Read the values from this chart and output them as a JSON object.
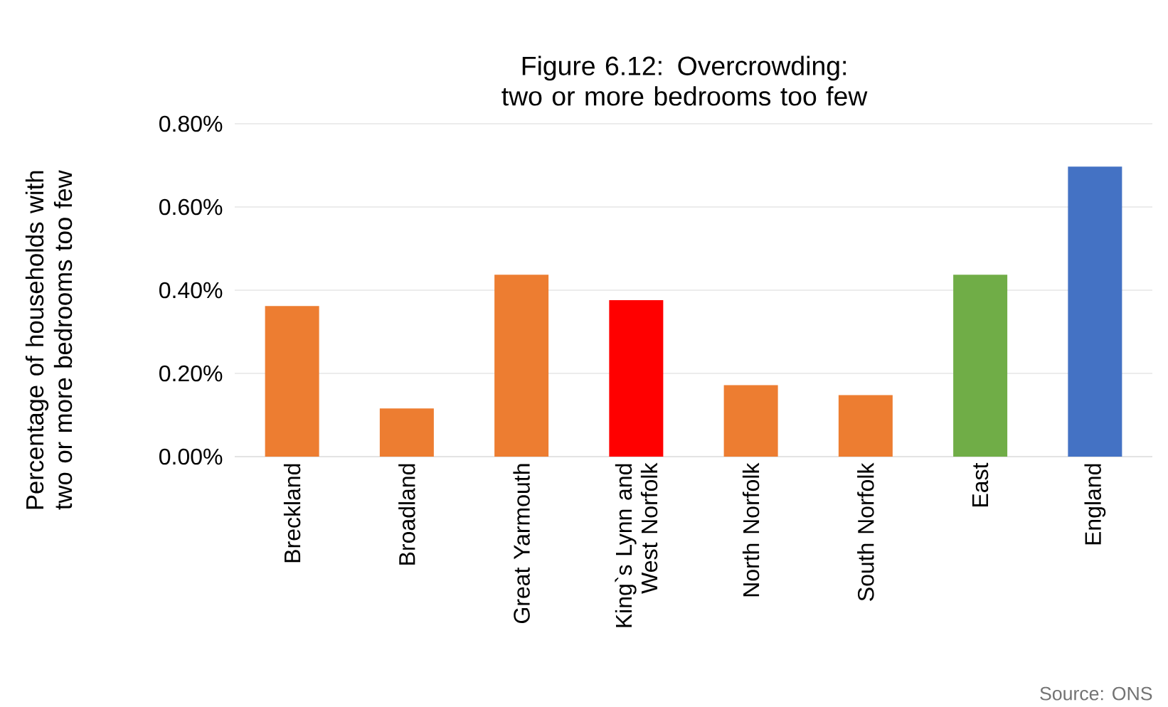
{
  "chart_data": {
    "type": "bar",
    "title": "Figure 6.12: Overcrowding: two or more bedrooms too few",
    "ylabel": "Percentage of households with two or more bedrooms too few",
    "categories": [
      "Breckland",
      "Broadland",
      "Great Yarmouth",
      "King`s Lynn and West Norfolk",
      "North Norfolk",
      "South Norfolk",
      "East",
      "England"
    ],
    "values": [
      0.362,
      0.116,
      0.437,
      0.376,
      0.172,
      0.148,
      0.437,
      0.697
    ],
    "colors": [
      "#ed7d31",
      "#ed7d31",
      "#ed7d31",
      "#ff0000",
      "#ed7d31",
      "#ed7d31",
      "#70ad47",
      "#4472c4"
    ],
    "ylim": [
      0,
      0.8
    ],
    "yticks": [
      {
        "value": 0,
        "label": "0.00%"
      },
      {
        "value": 0.2,
        "label": "0.20%"
      },
      {
        "value": 0.4,
        "label": "0.40%"
      },
      {
        "value": 0.6,
        "label": "0.60%"
      },
      {
        "value": 0.8,
        "label": "0.80%"
      }
    ],
    "grid": "y",
    "annotations": [
      "Source: ONS"
    ]
  }
}
